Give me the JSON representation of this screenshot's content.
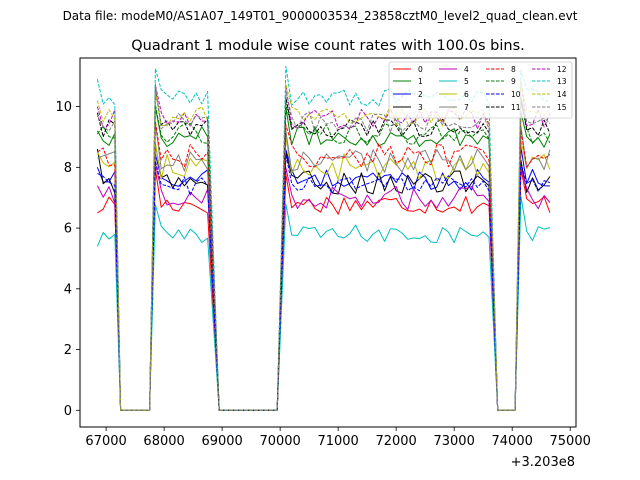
{
  "data_file_label": "Data file: modeM0/AS1A07_149T01_9000003534_23858cztM0_level2_quad_clean.evt",
  "chart_data": {
    "type": "line",
    "title": "Quadrant 1 module wise count rates with 100.0s bins.",
    "xlabel": "",
    "ylabel": "",
    "x_offset_label": "+3.203e8",
    "xlim": [
      66550,
      75100
    ],
    "ylim": [
      -0.55,
      11.6
    ],
    "x_ticks": [
      67000,
      68000,
      69000,
      70000,
      71000,
      72000,
      73000,
      74000,
      75000
    ],
    "x_tick_labels": [
      "67000",
      "68000",
      "69000",
      "70000",
      "71000",
      "72000",
      "73000",
      "74000",
      "75000"
    ],
    "y_ticks": [
      0,
      2,
      4,
      6,
      8,
      10
    ],
    "y_tick_labels": [
      "0",
      "2",
      "4",
      "6",
      "8",
      "10"
    ],
    "legend_position": "top-right",
    "segments": [
      {
        "start": 66850,
        "n": 4
      },
      {
        "start": 67850,
        "n": 10
      },
      {
        "start": 70100,
        "n": 36
      },
      {
        "start": 74150,
        "n": 6
      }
    ],
    "gap_samples": [
      {
        "x": 67250,
        "end": 67750
      },
      {
        "x": 68950,
        "end": 70000
      },
      {
        "x": 73750,
        "end": 74050
      }
    ],
    "bin_seconds": 100,
    "series": [
      {
        "name": "0",
        "color": "#ff0000",
        "dash": "solid",
        "level": 6.8,
        "spread": 0.35,
        "first": 6.5
      },
      {
        "name": "1",
        "color": "#008000",
        "dash": "solid",
        "level": 9.0,
        "spread": 0.35,
        "first": 9.2
      },
      {
        "name": "2",
        "color": "#0000ff",
        "dash": "solid",
        "level": 7.6,
        "spread": 0.35,
        "first": 8.0
      },
      {
        "name": "3",
        "color": "#000000",
        "dash": "solid",
        "level": 7.5,
        "spread": 0.4,
        "first": 8.6
      },
      {
        "name": "4",
        "color": "#bf00bf",
        "dash": "solid",
        "level": 7.0,
        "spread": 0.4,
        "first": 7.4
      },
      {
        "name": "5",
        "color": "#00bfbf",
        "dash": "solid",
        "level": 5.8,
        "spread": 0.3,
        "first": 5.4
      },
      {
        "name": "6",
        "color": "#bfbf00",
        "dash": "solid",
        "level": 8.0,
        "spread": 0.45,
        "first": 8.5
      },
      {
        "name": "7",
        "color": "#808080",
        "dash": "solid",
        "level": 8.2,
        "spread": 0.4,
        "first": 8.3
      },
      {
        "name": "8",
        "color": "#ff0000",
        "dash": "dashed",
        "level": 8.4,
        "spread": 0.4,
        "first": 8.5
      },
      {
        "name": "9",
        "color": "#008000",
        "dash": "dashed",
        "level": 9.1,
        "spread": 0.35,
        "first": 9.1
      },
      {
        "name": "10",
        "color": "#0000ff",
        "dash": "dashed",
        "level": 7.4,
        "spread": 0.35,
        "first": 7.8
      },
      {
        "name": "11",
        "color": "#000000",
        "dash": "dashed",
        "level": 9.3,
        "spread": 0.3,
        "first": 9.8
      },
      {
        "name": "12",
        "color": "#bf00bf",
        "dash": "dashed",
        "level": 9.6,
        "spread": 0.35,
        "first": 10.0
      },
      {
        "name": "13",
        "color": "#00bfbf",
        "dash": "dashed",
        "level": 10.3,
        "spread": 0.3,
        "first": 10.9
      },
      {
        "name": "14",
        "color": "#bfbf00",
        "dash": "dashed",
        "level": 9.7,
        "spread": 0.35,
        "first": 10.2
      },
      {
        "name": "15",
        "color": "#808080",
        "dash": "dashed",
        "level": 9.5,
        "spread": 0.35,
        "first": 9.7
      }
    ]
  }
}
